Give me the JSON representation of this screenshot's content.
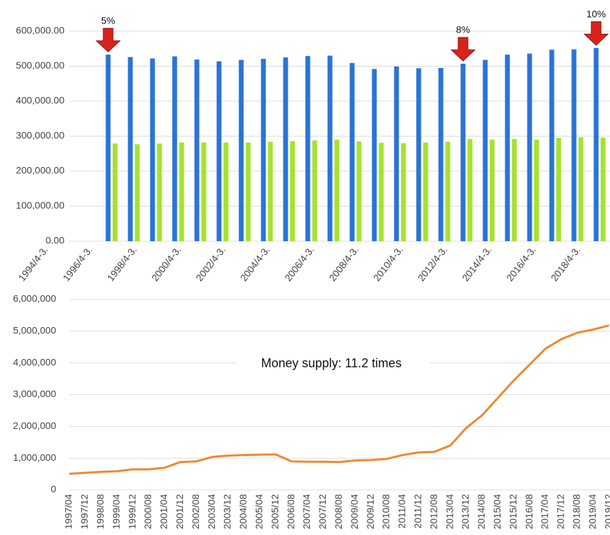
{
  "chart_data": [
    {
      "type": "bar",
      "categories": [
        "1994/4-3.",
        null,
        "1996/4-3.",
        null,
        "1998/4-3.",
        null,
        "2000/4-3.",
        null,
        "2002/4-3.",
        null,
        "2004/4-3.",
        null,
        "2006/4-3.",
        null,
        "2008/4-3.",
        null,
        "2010/4-3.",
        null,
        "2012/4-3.",
        null,
        "2014/4-3.",
        null,
        "2016/4-3.",
        null,
        "2018/4-3.",
        null
      ],
      "series": [
        {
          "color": "#2a74d6",
          "values": [
            null,
            null,
            null,
            533000,
            526000,
            522000,
            528000,
            519000,
            514000,
            518000,
            521000,
            525000,
            529000,
            530000,
            509000,
            492000,
            499000,
            494000,
            495000,
            507000,
            518000,
            533000,
            536000,
            547000,
            548000,
            552000
          ]
        },
        {
          "color": "#a6e22e",
          "values": [
            null,
            null,
            null,
            279000,
            277000,
            279000,
            282000,
            282000,
            282000,
            282000,
            284000,
            286000,
            288000,
            290000,
            285000,
            281000,
            280000,
            282000,
            284000,
            292000,
            290000,
            292000,
            290000,
            295000,
            297000,
            296000
          ]
        }
      ],
      "annotations": [
        {
          "text": "5%",
          "index": 3
        },
        {
          "text": "8%",
          "index": 19
        },
        {
          "text": "10%",
          "index": 25
        }
      ],
      "ylim": [
        0,
        600000
      ],
      "yticks": [
        {
          "value": 0,
          "label": "0.00"
        },
        {
          "value": 100000,
          "label": "100,000.00"
        },
        {
          "value": 200000,
          "label": "200,000.00"
        },
        {
          "value": 300000,
          "label": "300,000.00"
        },
        {
          "value": 400000,
          "label": "400,000.00"
        },
        {
          "value": 500000,
          "label": "500,000.00"
        },
        {
          "value": 600000,
          "label": "600,000.00"
        }
      ],
      "grid": true
    },
    {
      "type": "line",
      "categories": [
        "1997/04",
        "1997/12",
        "1998/08",
        "1999/04",
        "1999/12",
        "2000/08",
        "2001/04",
        "2001/12",
        "2002/08",
        "2003/04",
        "2003/12",
        "2004/08",
        "2005/04",
        "2005/12",
        "2006/08",
        "2007/04",
        "2007/12",
        "2008/08",
        "2009/04",
        "2009/12",
        "2010/08",
        "2011/04",
        "2011/12",
        "2012/08",
        "2013/04",
        "2013/12",
        "2014/08",
        "2015/04",
        "2015/12",
        "2016/08",
        "2017/04",
        "2017/12",
        "2018/08",
        "2019/04",
        "2019/12"
      ],
      "series": [
        {
          "color": "#f0882c",
          "values": [
            510000,
            540000,
            570000,
            590000,
            650000,
            650000,
            700000,
            880000,
            900000,
            1040000,
            1080000,
            1100000,
            1110000,
            1120000,
            900000,
            890000,
            890000,
            880000,
            930000,
            940000,
            980000,
            1100000,
            1180000,
            1200000,
            1400000,
            1950000,
            2350000,
            2900000,
            3450000,
            3950000,
            4450000,
            4750000,
            4950000,
            5050000,
            5180000
          ]
        }
      ],
      "annotation": "Money supply: 11.2 times",
      "ylim": [
        0,
        6000000
      ],
      "yticks": [
        0,
        {
          "value": 1000000,
          "label": "1,000,000"
        },
        {
          "value": 2000000,
          "label": "2,000,000"
        },
        {
          "value": 3000000,
          "label": "3,000,000"
        },
        {
          "value": 4000000,
          "label": "4,000,000"
        },
        {
          "value": 5000000,
          "label": "5,000,000"
        },
        {
          "value": 6000000,
          "label": "6,000,000"
        }
      ],
      "grid": true
    }
  ]
}
